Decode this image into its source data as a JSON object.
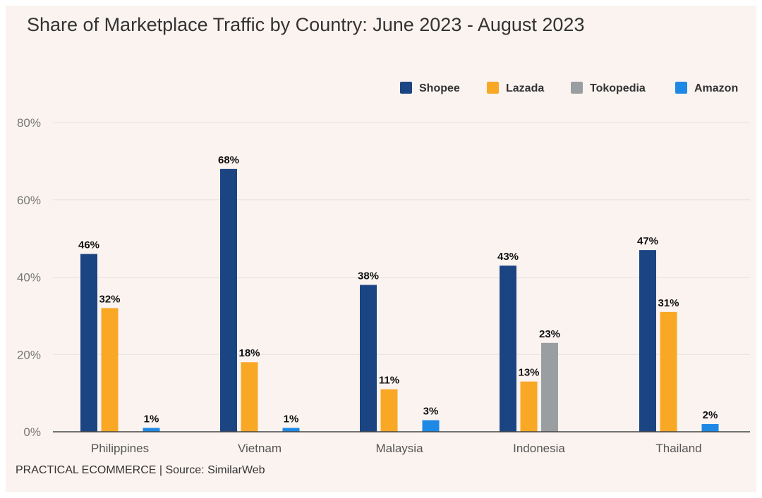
{
  "chart_data": {
    "type": "bar",
    "title": "Share of Marketplace Traffic by Country: June 2023 - August 2023",
    "source": "PRACTICAL ECOMMERCE | Source: SimilarWeb",
    "xlabel": "",
    "ylabel": "",
    "ylim": [
      0,
      80
    ],
    "yticks": [
      "0%",
      "20%",
      "40%",
      "60%",
      "80%"
    ],
    "yticks_values": [
      0,
      20,
      40,
      60,
      80
    ],
    "grid": true,
    "legend_position": "top-right",
    "categories": [
      "Philippines",
      "Vietnam",
      "Malaysia",
      "Indonesia",
      "Thailand"
    ],
    "series": [
      {
        "name": "Shopee",
        "color": "#1b4582",
        "values": [
          46,
          68,
          38,
          43,
          47
        ],
        "labels": [
          "46%",
          "68%",
          "38%",
          "43%",
          "47%"
        ]
      },
      {
        "name": "Lazada",
        "color": "#f9a825",
        "values": [
          32,
          18,
          11,
          13,
          31
        ],
        "labels": [
          "32%",
          "18%",
          "11%",
          "13%",
          "31%"
        ]
      },
      {
        "name": "Tokopedia",
        "color": "#9a9ea1",
        "values": [
          null,
          null,
          null,
          23,
          null
        ],
        "labels": [
          null,
          null,
          null,
          "23%",
          null
        ]
      },
      {
        "name": "Amazon",
        "color": "#1e88e5",
        "values": [
          1,
          1,
          3,
          null,
          2
        ],
        "labels": [
          "1%",
          "1%",
          "3%",
          null,
          "2%"
        ]
      }
    ]
  }
}
